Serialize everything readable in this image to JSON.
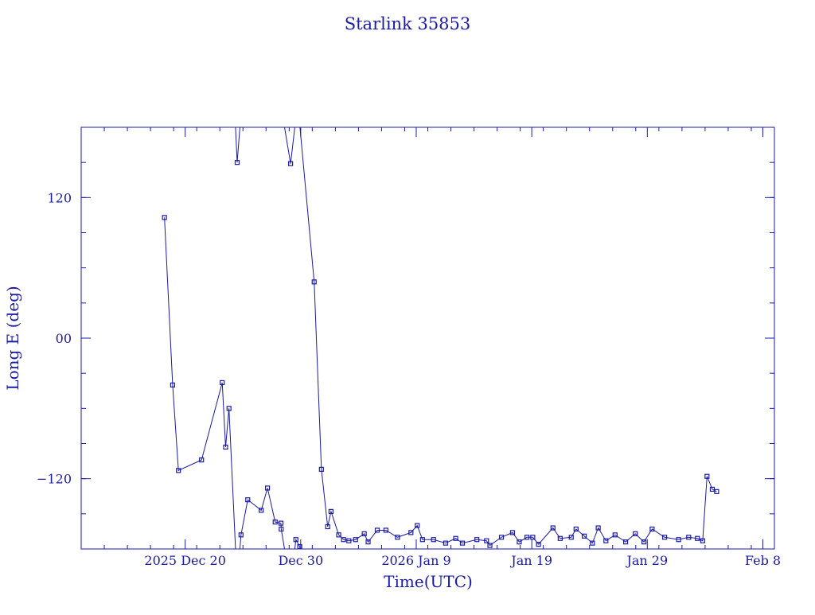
{
  "chart_data": {
    "type": "line",
    "title": "Starlink 35853",
    "xlabel": "Time(UTC)",
    "ylabel": "Long E (deg)",
    "ylim": [
      -180,
      180
    ],
    "xlim": [
      "2025-12-11",
      "2026-02-09"
    ],
    "x_major_ticks": [
      {
        "date": "2025-12-20",
        "label": "2025 Dec 20"
      },
      {
        "date": "2025-12-30",
        "label": "Dec 30"
      },
      {
        "date": "2026-01-09",
        "label": "2026 Jan  9"
      },
      {
        "date": "2026-01-19",
        "label": "Jan 19"
      },
      {
        "date": "2026-01-29",
        "label": "Jan 29"
      },
      {
        "date": "2026-02-08",
        "label": "Feb  8"
      }
    ],
    "y_major_ticks": [
      {
        "value": 120,
        "label": "120"
      },
      {
        "value": 0,
        "label": "00"
      },
      {
        "value": -120,
        "label": "−120"
      }
    ],
    "y_minor_step": 30,
    "grid": false,
    "series": [
      {
        "x": [
          "2025-12-18 05:00",
          "2025-12-18 22:00",
          "2025-12-19 10:00",
          "2025-12-21 10:00",
          "2025-12-23 05:00",
          "2025-12-23 12:00",
          "2025-12-23 19:00",
          "2025-12-24 12:00",
          "2025-12-24 20:00",
          "2025-12-25 10:00",
          "2025-12-26 14:00",
          "2025-12-27 03:00",
          "2025-12-27 19:00",
          "2025-12-28 07:00",
          "2025-12-28 07:30",
          "2025-12-29 03:00",
          "2025-12-29 14:00",
          "2025-12-29 22:00",
          "2025-12-31 04:00",
          "2025-12-31 19:00",
          "2026-01-01 08:00",
          "2026-01-01 15:00",
          "2026-01-02 07:00",
          "2026-01-02 17:00",
          "2026-01-03 04:00",
          "2026-01-03 18:00",
          "2026-01-04 12:00",
          "2026-01-04 20:00",
          "2026-01-05 15:00",
          "2026-01-06 09:00",
          "2026-01-07 09:00",
          "2026-01-08 13:00",
          "2026-01-09 02:00",
          "2026-01-09 13:00",
          "2026-01-10 12:00",
          "2026-01-11 13:00",
          "2026-01-12 10:00",
          "2026-01-13 00:00",
          "2026-01-14 06:00",
          "2026-01-15 02:00",
          "2026-01-15 09:00",
          "2026-01-16 09:00",
          "2026-01-17 08:00",
          "2026-01-17 22:00",
          "2026-01-18 14:00",
          "2026-01-19 02:00",
          "2026-01-19 14:00",
          "2026-01-20 20:00",
          "2026-01-21 11:00",
          "2026-01-22 10:00",
          "2026-01-22 20:00",
          "2026-01-23 13:00",
          "2026-01-24 06:00",
          "2026-01-24 18:00",
          "2026-01-25 10:00",
          "2026-01-26 05:00",
          "2026-01-27 03:00",
          "2026-01-27 23:00",
          "2026-01-28 17:00",
          "2026-01-29 10:00",
          "2026-01-30 12:00",
          "2026-01-31 17:00",
          "2026-02-01 14:00",
          "2026-02-02 08:00",
          "2026-02-02 19:00",
          "2026-02-03 04:00",
          "2026-02-03 15:00",
          "2026-02-04 00:00"
        ],
        "y": [
          103,
          -40,
          -113,
          -104,
          -38,
          -93,
          -60,
          150,
          -168,
          -138,
          -147,
          -128,
          -157,
          -158,
          -163,
          149,
          -172,
          -178,
          48,
          -112,
          -161,
          -148,
          -168,
          -172,
          -173,
          -172,
          -167,
          -174,
          -164,
          -164,
          -170,
          -166,
          -160,
          -172,
          -172,
          -175,
          -171,
          -175,
          -172,
          -173,
          -177,
          -170,
          -166,
          -174,
          -170,
          -170,
          -176,
          -162,
          -171,
          -170,
          -163,
          -169,
          -175,
          -162,
          -173,
          -168,
          -174,
          -167,
          -174,
          -163,
          -170,
          -172,
          -170,
          -171,
          -173,
          -118,
          -129,
          -131
        ],
        "name": ""
      }
    ]
  }
}
